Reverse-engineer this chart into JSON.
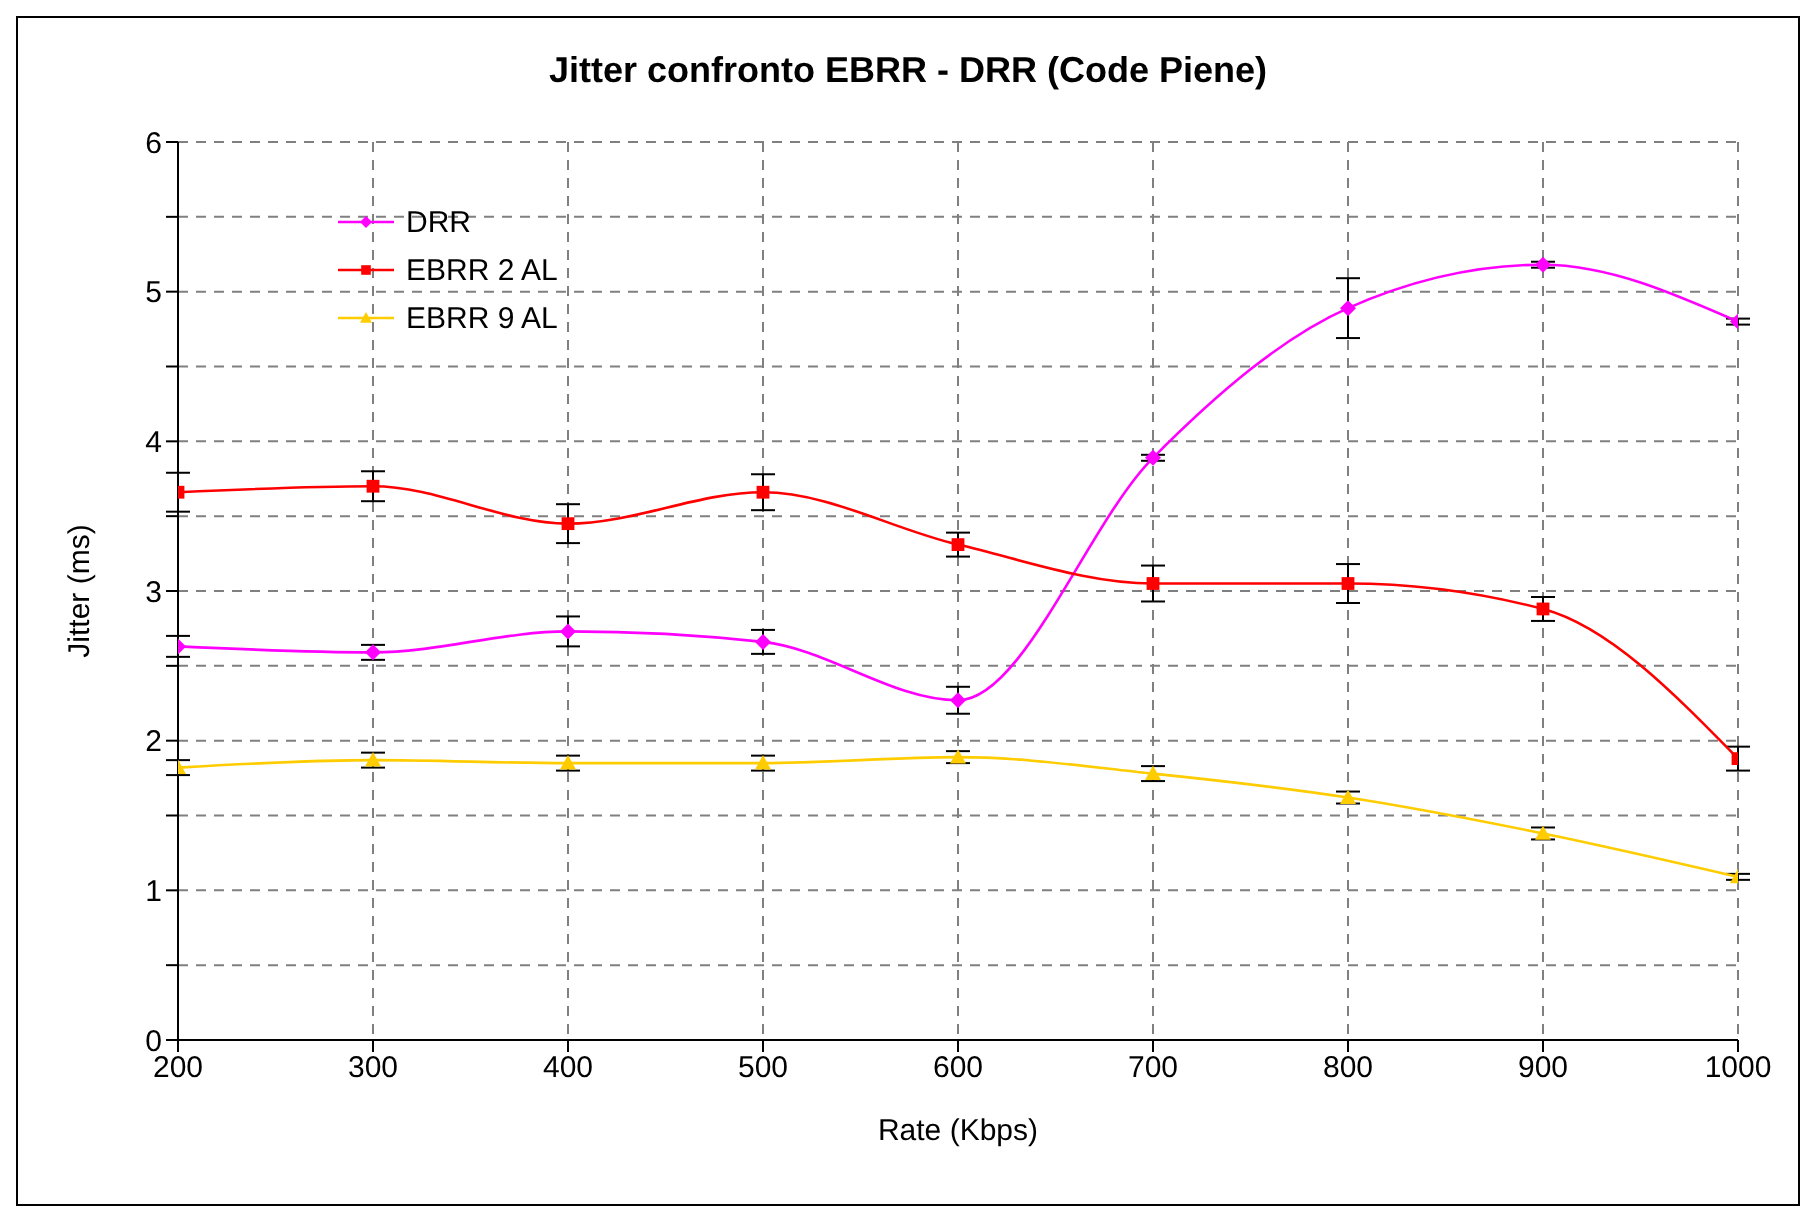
{
  "chart_data": {
    "type": "line",
    "title": "Jitter confronto EBRR - DRR (Code Piene)",
    "xlabel": "Rate (Kbps)",
    "ylabel": "Jitter (ms)",
    "x": [
      200,
      300,
      400,
      500,
      600,
      700,
      800,
      900,
      1000
    ],
    "series": [
      {
        "name": "DRR",
        "color": "#ff00ff",
        "marker": "diamond",
        "values": [
          2.63,
          2.59,
          2.73,
          2.66,
          2.27,
          3.89,
          4.89,
          5.18,
          4.8
        ],
        "errors": [
          0.07,
          0.05,
          0.1,
          0.08,
          0.09,
          0.02,
          0.2,
          0.02,
          0.02
        ]
      },
      {
        "name": "EBRR 2 AL",
        "color": "#ff0000",
        "marker": "square",
        "values": [
          3.66,
          3.7,
          3.45,
          3.66,
          3.31,
          3.05,
          3.05,
          2.88,
          1.88
        ],
        "errors": [
          0.13,
          0.1,
          0.13,
          0.12,
          0.08,
          0.12,
          0.13,
          0.08,
          0.08
        ]
      },
      {
        "name": "EBRR 9 AL",
        "color": "#ffcc00",
        "marker": "triangle",
        "values": [
          1.82,
          1.87,
          1.85,
          1.85,
          1.89,
          1.78,
          1.62,
          1.38,
          1.09
        ],
        "errors": [
          0.05,
          0.05,
          0.05,
          0.05,
          0.04,
          0.05,
          0.04,
          0.04,
          0.02
        ]
      }
    ],
    "xlim": [
      200,
      1000
    ],
    "xticks": [
      200,
      300,
      400,
      500,
      600,
      700,
      800,
      900,
      1000
    ],
    "ylim": [
      0,
      6
    ],
    "yticks": [
      0,
      {
        "value": 0.5,
        "label": null
      },
      1,
      {
        "value": 1.5,
        "label": null
      },
      2,
      {
        "value": 2.5,
        "label": null
      },
      3,
      {
        "value": 3.5,
        "label": null
      },
      4,
      {
        "value": 4.5,
        "label": null
      },
      5,
      {
        "value": 5.5,
        "label": null
      },
      6
    ],
    "grid": true,
    "legend": "top left",
    "line_style": "solid"
  }
}
